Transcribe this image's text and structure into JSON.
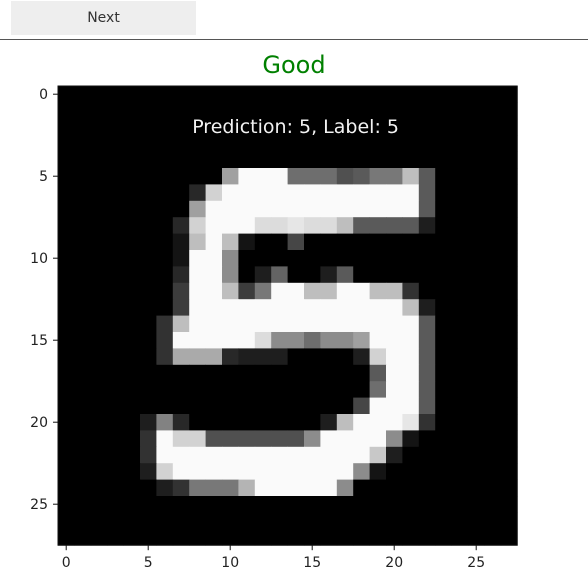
{
  "toolbar": {
    "next_label": "Next"
  },
  "status": {
    "text": "Good",
    "color": "#008000"
  },
  "plot": {
    "annotation": "Prediction: 5, Label: 5",
    "x_ticks": [
      "0",
      "5",
      "10",
      "15",
      "20",
      "25"
    ],
    "y_ticks": [
      "0",
      "5",
      "10",
      "15",
      "20",
      "25"
    ]
  },
  "chart_data": {
    "type": "heatmap",
    "colormap": "gray",
    "xlim": [
      -0.5,
      27.5
    ],
    "ylim": [
      27.5,
      -0.5
    ],
    "x_tick_values": [
      0,
      5,
      10,
      15,
      20,
      25
    ],
    "y_tick_values": [
      0,
      5,
      10,
      15,
      20,
      25
    ],
    "rows": [
      "",
      "",
      "",
      "",
      "",
      "",
      "",
      "",
      "",
      "",
      "",
      "",
      "",
      "",
      "",
      "",
      "",
      "",
      "",
      "",
      "",
      "",
      "",
      "",
      "",
      "",
      "",
      ""
    ],
    "pixels": [
      [
        5,
        10,
        160
      ],
      [
        5,
        11,
        250
      ],
      [
        5,
        12,
        250
      ],
      [
        5,
        13,
        250
      ],
      [
        5,
        14,
        110
      ],
      [
        5,
        15,
        110
      ],
      [
        5,
        16,
        110
      ],
      [
        5,
        17,
        80
      ],
      [
        5,
        18,
        90
      ],
      [
        5,
        19,
        120
      ],
      [
        5,
        20,
        120
      ],
      [
        5,
        21,
        190
      ],
      [
        5,
        22,
        90
      ],
      [
        6,
        8,
        40
      ],
      [
        6,
        9,
        210
      ],
      [
        6,
        10,
        250
      ],
      [
        6,
        11,
        250
      ],
      [
        6,
        12,
        250
      ],
      [
        6,
        13,
        250
      ],
      [
        6,
        14,
        250
      ],
      [
        6,
        15,
        250
      ],
      [
        6,
        16,
        250
      ],
      [
        6,
        17,
        250
      ],
      [
        6,
        18,
        250
      ],
      [
        6,
        19,
        250
      ],
      [
        6,
        20,
        250
      ],
      [
        6,
        21,
        250
      ],
      [
        6,
        22,
        90
      ],
      [
        7,
        8,
        160
      ],
      [
        7,
        9,
        250
      ],
      [
        7,
        10,
        250
      ],
      [
        7,
        11,
        250
      ],
      [
        7,
        12,
        250
      ],
      [
        7,
        13,
        250
      ],
      [
        7,
        14,
        250
      ],
      [
        7,
        15,
        250
      ],
      [
        7,
        16,
        250
      ],
      [
        7,
        17,
        250
      ],
      [
        7,
        18,
        250
      ],
      [
        7,
        19,
        250
      ],
      [
        7,
        20,
        250
      ],
      [
        7,
        21,
        250
      ],
      [
        7,
        22,
        90
      ],
      [
        8,
        7,
        40
      ],
      [
        8,
        8,
        210
      ],
      [
        8,
        9,
        250
      ],
      [
        8,
        10,
        250
      ],
      [
        8,
        11,
        250
      ],
      [
        8,
        12,
        220
      ],
      [
        8,
        13,
        220
      ],
      [
        8,
        14,
        230
      ],
      [
        8,
        15,
        220
      ],
      [
        8,
        16,
        220
      ],
      [
        8,
        17,
        190
      ],
      [
        8,
        18,
        90
      ],
      [
        8,
        19,
        90
      ],
      [
        8,
        20,
        90
      ],
      [
        8,
        21,
        90
      ],
      [
        8,
        22,
        30
      ],
      [
        9,
        7,
        20
      ],
      [
        9,
        8,
        190
      ],
      [
        9,
        9,
        250
      ],
      [
        9,
        10,
        190
      ],
      [
        9,
        11,
        20
      ],
      [
        9,
        12,
        0
      ],
      [
        9,
        13,
        0
      ],
      [
        9,
        14,
        70
      ],
      [
        10,
        7,
        20
      ],
      [
        10,
        8,
        250
      ],
      [
        10,
        9,
        250
      ],
      [
        10,
        10,
        140
      ],
      [
        11,
        7,
        40
      ],
      [
        11,
        8,
        250
      ],
      [
        11,
        9,
        250
      ],
      [
        11,
        10,
        140
      ],
      [
        11,
        11,
        0
      ],
      [
        11,
        12,
        30
      ],
      [
        11,
        13,
        100
      ],
      [
        11,
        14,
        0
      ],
      [
        11,
        15,
        0
      ],
      [
        11,
        16,
        30
      ],
      [
        11,
        17,
        90
      ],
      [
        12,
        7,
        60
      ],
      [
        12,
        8,
        250
      ],
      [
        12,
        9,
        250
      ],
      [
        12,
        10,
        190
      ],
      [
        12,
        11,
        60
      ],
      [
        12,
        12,
        120
      ],
      [
        12,
        13,
        250
      ],
      [
        12,
        14,
        250
      ],
      [
        12,
        15,
        190
      ],
      [
        12,
        16,
        190
      ],
      [
        12,
        17,
        250
      ],
      [
        12,
        18,
        250
      ],
      [
        12,
        19,
        190
      ],
      [
        12,
        20,
        190
      ],
      [
        12,
        21,
        50
      ],
      [
        13,
        7,
        60
      ],
      [
        13,
        8,
        250
      ],
      [
        13,
        9,
        250
      ],
      [
        13,
        10,
        250
      ],
      [
        13,
        11,
        250
      ],
      [
        13,
        12,
        250
      ],
      [
        13,
        13,
        250
      ],
      [
        13,
        14,
        250
      ],
      [
        13,
        15,
        250
      ],
      [
        13,
        16,
        250
      ],
      [
        13,
        17,
        250
      ],
      [
        13,
        18,
        250
      ],
      [
        13,
        19,
        250
      ],
      [
        13,
        20,
        250
      ],
      [
        13,
        21,
        190
      ],
      [
        13,
        22,
        30
      ],
      [
        14,
        6,
        50
      ],
      [
        14,
        7,
        190
      ],
      [
        14,
        8,
        250
      ],
      [
        14,
        9,
        250
      ],
      [
        14,
        10,
        250
      ],
      [
        14,
        11,
        250
      ],
      [
        14,
        12,
        250
      ],
      [
        14,
        13,
        250
      ],
      [
        14,
        14,
        250
      ],
      [
        14,
        15,
        250
      ],
      [
        14,
        16,
        250
      ],
      [
        14,
        17,
        250
      ],
      [
        14,
        18,
        250
      ],
      [
        14,
        19,
        250
      ],
      [
        14,
        20,
        250
      ],
      [
        14,
        21,
        250
      ],
      [
        14,
        22,
        90
      ],
      [
        15,
        6,
        50
      ],
      [
        15,
        7,
        250
      ],
      [
        15,
        8,
        250
      ],
      [
        15,
        9,
        250
      ],
      [
        15,
        10,
        250
      ],
      [
        15,
        11,
        250
      ],
      [
        15,
        12,
        220
      ],
      [
        15,
        13,
        140
      ],
      [
        15,
        14,
        140
      ],
      [
        15,
        15,
        110
      ],
      [
        15,
        16,
        140
      ],
      [
        15,
        17,
        140
      ],
      [
        15,
        18,
        160
      ],
      [
        15,
        19,
        250
      ],
      [
        15,
        20,
        250
      ],
      [
        15,
        21,
        250
      ],
      [
        15,
        22,
        90
      ],
      [
        16,
        6,
        50
      ],
      [
        16,
        7,
        170
      ],
      [
        16,
        8,
        170
      ],
      [
        16,
        9,
        170
      ],
      [
        16,
        10,
        40
      ],
      [
        16,
        11,
        30
      ],
      [
        16,
        12,
        30
      ],
      [
        16,
        13,
        30
      ],
      [
        16,
        18,
        30
      ],
      [
        16,
        19,
        210
      ],
      [
        16,
        20,
        250
      ],
      [
        16,
        21,
        250
      ],
      [
        16,
        22,
        90
      ],
      [
        17,
        19,
        90
      ],
      [
        17,
        20,
        250
      ],
      [
        17,
        21,
        250
      ],
      [
        17,
        22,
        90
      ],
      [
        18,
        19,
        110
      ],
      [
        18,
        20,
        250
      ],
      [
        18,
        21,
        250
      ],
      [
        18,
        22,
        90
      ],
      [
        19,
        18,
        70
      ],
      [
        19,
        19,
        250
      ],
      [
        19,
        20,
        250
      ],
      [
        19,
        21,
        250
      ],
      [
        19,
        22,
        90
      ],
      [
        20,
        5,
        30
      ],
      [
        20,
        6,
        130
      ],
      [
        20,
        7,
        40
      ],
      [
        20,
        16,
        30
      ],
      [
        20,
        17,
        190
      ],
      [
        20,
        18,
        250
      ],
      [
        20,
        19,
        250
      ],
      [
        20,
        20,
        250
      ],
      [
        20,
        21,
        230
      ],
      [
        20,
        22,
        50
      ],
      [
        21,
        5,
        50
      ],
      [
        21,
        6,
        250
      ],
      [
        21,
        7,
        210
      ],
      [
        21,
        8,
        210
      ],
      [
        21,
        9,
        80
      ],
      [
        21,
        10,
        80
      ],
      [
        21,
        11,
        80
      ],
      [
        21,
        12,
        80
      ],
      [
        21,
        13,
        80
      ],
      [
        21,
        14,
        80
      ],
      [
        21,
        15,
        140
      ],
      [
        21,
        16,
        250
      ],
      [
        21,
        17,
        250
      ],
      [
        21,
        18,
        250
      ],
      [
        21,
        19,
        250
      ],
      [
        21,
        20,
        140
      ],
      [
        21,
        21,
        20
      ],
      [
        22,
        5,
        50
      ],
      [
        22,
        6,
        250
      ],
      [
        22,
        7,
        250
      ],
      [
        22,
        8,
        250
      ],
      [
        22,
        9,
        250
      ],
      [
        22,
        10,
        250
      ],
      [
        22,
        11,
        250
      ],
      [
        22,
        12,
        250
      ],
      [
        22,
        13,
        250
      ],
      [
        22,
        14,
        250
      ],
      [
        22,
        15,
        250
      ],
      [
        22,
        16,
        250
      ],
      [
        22,
        17,
        250
      ],
      [
        22,
        18,
        250
      ],
      [
        22,
        19,
        200
      ],
      [
        22,
        20,
        30
      ],
      [
        23,
        5,
        30
      ],
      [
        23,
        6,
        210
      ],
      [
        23,
        7,
        250
      ],
      [
        23,
        8,
        250
      ],
      [
        23,
        9,
        250
      ],
      [
        23,
        10,
        250
      ],
      [
        23,
        11,
        250
      ],
      [
        23,
        12,
        250
      ],
      [
        23,
        13,
        250
      ],
      [
        23,
        14,
        250
      ],
      [
        23,
        15,
        250
      ],
      [
        23,
        16,
        250
      ],
      [
        23,
        17,
        250
      ],
      [
        23,
        18,
        140
      ],
      [
        23,
        19,
        20
      ],
      [
        24,
        6,
        30
      ],
      [
        24,
        7,
        50
      ],
      [
        24,
        8,
        120
      ],
      [
        24,
        9,
        120
      ],
      [
        24,
        10,
        120
      ],
      [
        24,
        11,
        180
      ],
      [
        24,
        12,
        250
      ],
      [
        24,
        13,
        250
      ],
      [
        24,
        14,
        250
      ],
      [
        24,
        15,
        250
      ],
      [
        24,
        16,
        250
      ],
      [
        24,
        17,
        140
      ]
    ]
  }
}
